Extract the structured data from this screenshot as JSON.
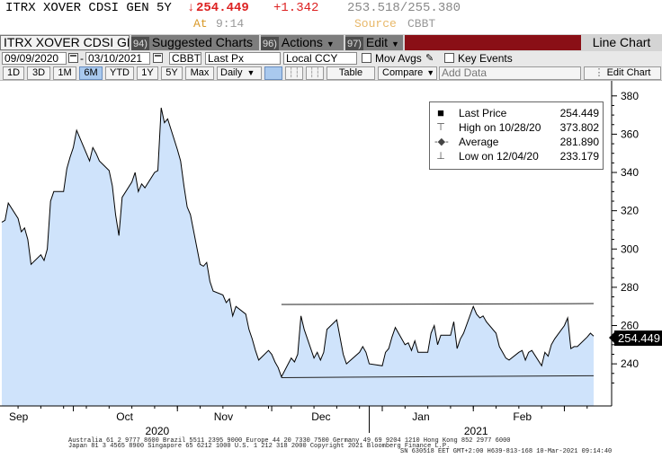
{
  "header": {
    "ticker": "ITRX XOVER CDSI GEN 5Y",
    "arrow": "↓",
    "price": "254.449",
    "change": "+1.342",
    "bid_ask": "253.518/255.380",
    "at_label": "At",
    "time": "9:14",
    "source_label": "Source",
    "source": "CBBT",
    "down_color": "#dd2222"
  },
  "toolbar": {
    "security_box": "ITRX XOVER CDSI GE",
    "suggested": {
      "num": "94)",
      "label": "Suggested Charts"
    },
    "actions": {
      "num": "96)",
      "label": "Actions"
    },
    "edit": {
      "num": "97)",
      "label": "Edit"
    },
    "line_chart": "Line Chart"
  },
  "controls": {
    "start_date": "09/09/2020",
    "end_date": "03/10/2021",
    "source": "CBBT",
    "field": "Last Px",
    "currency": "Local CCY",
    "mov_avgs": "Mov Avgs",
    "key_events": "Key Events",
    "periods": [
      "1D",
      "3D",
      "1M",
      "6M",
      "YTD",
      "1Y",
      "5Y",
      "Max"
    ],
    "active_period": "6M",
    "frequency": "Daily",
    "table": "Table",
    "compare": "Compare",
    "add_data": "Add Data",
    "edit_chart": "Edit Chart"
  },
  "legend": {
    "last_price": {
      "label": "Last Price",
      "value": "254.449"
    },
    "high": {
      "label": "High on 10/28/20",
      "value": "373.802"
    },
    "average": {
      "label": "Average",
      "value": "281.890"
    },
    "low": {
      "label": "Low on 12/04/20",
      "value": "233.179"
    }
  },
  "price_tag": "254.449",
  "chart_data": {
    "type": "area",
    "title": "",
    "xlabel": "",
    "ylabel": "",
    "ylim": [
      218,
      386
    ],
    "yticks": [
      240,
      260,
      280,
      300,
      320,
      340,
      360,
      380
    ],
    "xlim": [
      "2020-09-09",
      "2021-03-10"
    ],
    "x_month_labels": [
      {
        "label": "Sep",
        "date": "2020-09-09"
      },
      {
        "label": "Oct",
        "date": "2020-10-12"
      },
      {
        "label": "Nov",
        "date": "2020-11-11"
      },
      {
        "label": "Dec",
        "date": "2020-12-11"
      },
      {
        "label": "Jan",
        "date": "2021-01-11"
      },
      {
        "label": "Feb",
        "date": "2021-02-11"
      }
    ],
    "x_year_labels": [
      {
        "label": "2020",
        "date": "2020-10-27"
      },
      {
        "label": "2021",
        "date": "2021-02-02"
      }
    ],
    "grid": false,
    "fill_color": "#cfe3fb",
    "line_color": "#000000",
    "series": [
      {
        "values": [
          [
            "2020-09-09",
            314
          ],
          [
            "2020-09-10",
            315
          ],
          [
            "2020-09-11",
            324
          ],
          [
            "2020-09-14",
            316
          ],
          [
            "2020-09-15",
            309
          ],
          [
            "2020-09-16",
            311
          ],
          [
            "2020-09-17",
            305
          ],
          [
            "2020-09-18",
            292
          ],
          [
            "2020-09-21",
            297
          ],
          [
            "2020-09-22",
            294
          ],
          [
            "2020-09-23",
            300
          ],
          [
            "2020-09-24",
            325
          ],
          [
            "2020-09-25",
            330
          ],
          [
            "2020-09-28",
            330
          ],
          [
            "2020-09-29",
            342
          ],
          [
            "2020-09-30",
            348
          ],
          [
            "2020-10-01",
            353
          ],
          [
            "2020-10-02",
            362
          ],
          [
            "2020-10-05",
            350
          ],
          [
            "2020-10-06",
            346
          ],
          [
            "2020-10-07",
            353
          ],
          [
            "2020-10-08",
            350
          ],
          [
            "2020-10-09",
            346
          ],
          [
            "2020-10-12",
            341
          ],
          [
            "2020-10-13",
            333
          ],
          [
            "2020-10-14",
            318
          ],
          [
            "2020-10-15",
            307
          ],
          [
            "2020-10-16",
            327
          ],
          [
            "2020-10-19",
            335
          ],
          [
            "2020-10-20",
            340
          ],
          [
            "2020-10-21",
            330
          ],
          [
            "2020-10-22",
            334
          ],
          [
            "2020-10-23",
            332
          ],
          [
            "2020-10-26",
            340
          ],
          [
            "2020-10-27",
            341
          ],
          [
            "2020-10-28",
            373.8
          ],
          [
            "2020-10-29",
            366
          ],
          [
            "2020-10-30",
            368
          ],
          [
            "2020-11-02",
            352
          ],
          [
            "2020-11-03",
            346
          ],
          [
            "2020-11-04",
            333
          ],
          [
            "2020-11-05",
            322
          ],
          [
            "2020-11-06",
            318
          ],
          [
            "2020-11-09",
            292
          ],
          [
            "2020-11-10",
            291
          ],
          [
            "2020-11-11",
            293
          ],
          [
            "2020-11-12",
            283
          ],
          [
            "2020-11-13",
            278
          ],
          [
            "2020-11-16",
            276
          ],
          [
            "2020-11-17",
            272
          ],
          [
            "2020-11-18",
            274
          ],
          [
            "2020-11-19",
            265
          ],
          [
            "2020-11-20",
            270
          ],
          [
            "2020-11-23",
            266
          ],
          [
            "2020-11-24",
            258
          ],
          [
            "2020-11-25",
            253
          ],
          [
            "2020-11-26",
            247
          ],
          [
            "2020-11-27",
            242
          ],
          [
            "2020-11-30",
            247
          ],
          [
            "2020-12-01",
            245
          ],
          [
            "2020-12-02",
            241
          ],
          [
            "2020-12-03",
            238
          ],
          [
            "2020-12-04",
            233.2
          ],
          [
            "2020-12-07",
            243
          ],
          [
            "2020-12-08",
            241
          ],
          [
            "2020-12-09",
            245
          ],
          [
            "2020-12-10",
            265
          ],
          [
            "2020-12-11",
            258
          ],
          [
            "2020-12-14",
            243
          ],
          [
            "2020-12-15",
            246
          ],
          [
            "2020-12-16",
            242
          ],
          [
            "2020-12-17",
            246
          ],
          [
            "2020-12-18",
            258
          ],
          [
            "2020-12-21",
            263
          ],
          [
            "2020-12-22",
            254
          ],
          [
            "2020-12-23",
            245
          ],
          [
            "2020-12-24",
            240
          ],
          [
            "2020-12-28",
            246
          ],
          [
            "2020-12-29",
            249
          ],
          [
            "2020-12-30",
            246
          ],
          [
            "2020-12-31",
            240
          ],
          [
            "2021-01-04",
            239
          ],
          [
            "2021-01-05",
            246
          ],
          [
            "2021-01-06",
            248
          ],
          [
            "2021-01-07",
            254
          ],
          [
            "2021-01-08",
            259
          ],
          [
            "2021-01-11",
            250
          ],
          [
            "2021-01-12",
            251
          ],
          [
            "2021-01-13",
            247
          ],
          [
            "2021-01-14",
            252
          ],
          [
            "2021-01-15",
            246
          ],
          [
            "2021-01-18",
            246
          ],
          [
            "2021-01-19",
            256
          ],
          [
            "2021-01-20",
            260
          ],
          [
            "2021-01-21",
            250
          ],
          [
            "2021-01-22",
            255
          ],
          [
            "2021-01-25",
            255
          ],
          [
            "2021-01-26",
            262
          ],
          [
            "2021-01-27",
            248
          ],
          [
            "2021-01-28",
            253
          ],
          [
            "2021-01-29",
            256
          ],
          [
            "2021-02-01",
            270
          ],
          [
            "2021-02-02",
            266
          ],
          [
            "2021-02-03",
            264
          ],
          [
            "2021-02-04",
            265
          ],
          [
            "2021-02-05",
            262
          ],
          [
            "2021-02-08",
            256
          ],
          [
            "2021-02-09",
            249
          ],
          [
            "2021-02-10",
            246
          ],
          [
            "2021-02-11",
            243
          ],
          [
            "2021-02-12",
            242
          ],
          [
            "2021-02-15",
            246
          ],
          [
            "2021-02-16",
            247
          ],
          [
            "2021-02-17",
            242
          ],
          [
            "2021-02-18",
            246
          ],
          [
            "2021-02-19",
            247
          ],
          [
            "2021-02-22",
            239
          ],
          [
            "2021-02-23",
            246
          ],
          [
            "2021-02-24",
            244
          ],
          [
            "2021-02-25",
            250
          ],
          [
            "2021-02-26",
            253
          ],
          [
            "2021-03-01",
            260
          ],
          [
            "2021-03-02",
            264
          ],
          [
            "2021-03-03",
            248
          ],
          [
            "2021-03-04",
            249
          ],
          [
            "2021-03-05",
            249
          ],
          [
            "2021-03-08",
            254
          ],
          [
            "2021-03-09",
            256
          ],
          [
            "2021-03-10",
            254.449
          ]
        ]
      }
    ],
    "trendlines": [
      {
        "from": [
          "2020-12-04",
          271.0
        ],
        "to": [
          "2021-03-10",
          271.5
        ]
      },
      {
        "from": [
          "2020-12-04",
          232.8
        ],
        "to": [
          "2021-03-10",
          233.8
        ]
      }
    ]
  },
  "footer": {
    "line1": "Australia 61 2 9777 8600 Brazil 5511 2395 9000 Europe 44 20 7330 7500 Germany 49 69 9204 1210 Hong Kong 852 2977 6000",
    "line2": "Japan 81 3 4565 8900       Singapore 65 6212 1000      U.S. 1 212 318 2000          Copyright 2021 Bloomberg Finance L.P.",
    "line3": "SN 630518 EET  GMT+2:00 H639-813-168 10-Mar-2021 09:14:40"
  }
}
